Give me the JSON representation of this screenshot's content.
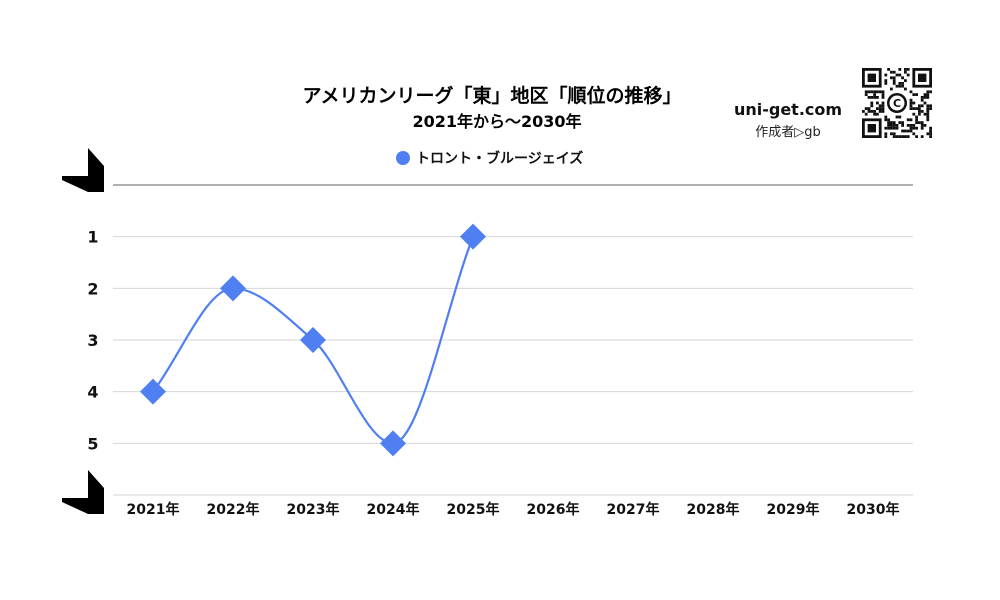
{
  "header": {
    "title": "アメリカンリーグ「東」地区「順位の推移」",
    "subtitle": "2021年から〜2030年"
  },
  "brand": {
    "site": "uni-get.com",
    "author": "作成者▷gb",
    "qr_icon": "qr-code-icon"
  },
  "chart_data": {
    "type": "line",
    "title": "アメリカンリーグ「東」地区「順位の推移」",
    "subtitle": "2021年から〜2030年",
    "categories": [
      "2021年",
      "2022年",
      "2023年",
      "2024年",
      "2025年",
      "2026年",
      "2027年",
      "2028年",
      "2029年",
      "2030年"
    ],
    "series": [
      {
        "name": "トロント・ブルージェイズ",
        "color": "#4f7ff0",
        "marker": "diamond",
        "smooth": true,
        "values": [
          4,
          2,
          3,
          5,
          1,
          null,
          null,
          null,
          null,
          null
        ]
      }
    ],
    "y_ticks": [
      "1",
      "2",
      "3",
      "4",
      "5"
    ],
    "y_reversed": true,
    "ylim": [
      0,
      6
    ],
    "grid": true,
    "legend_position": "top-center"
  }
}
